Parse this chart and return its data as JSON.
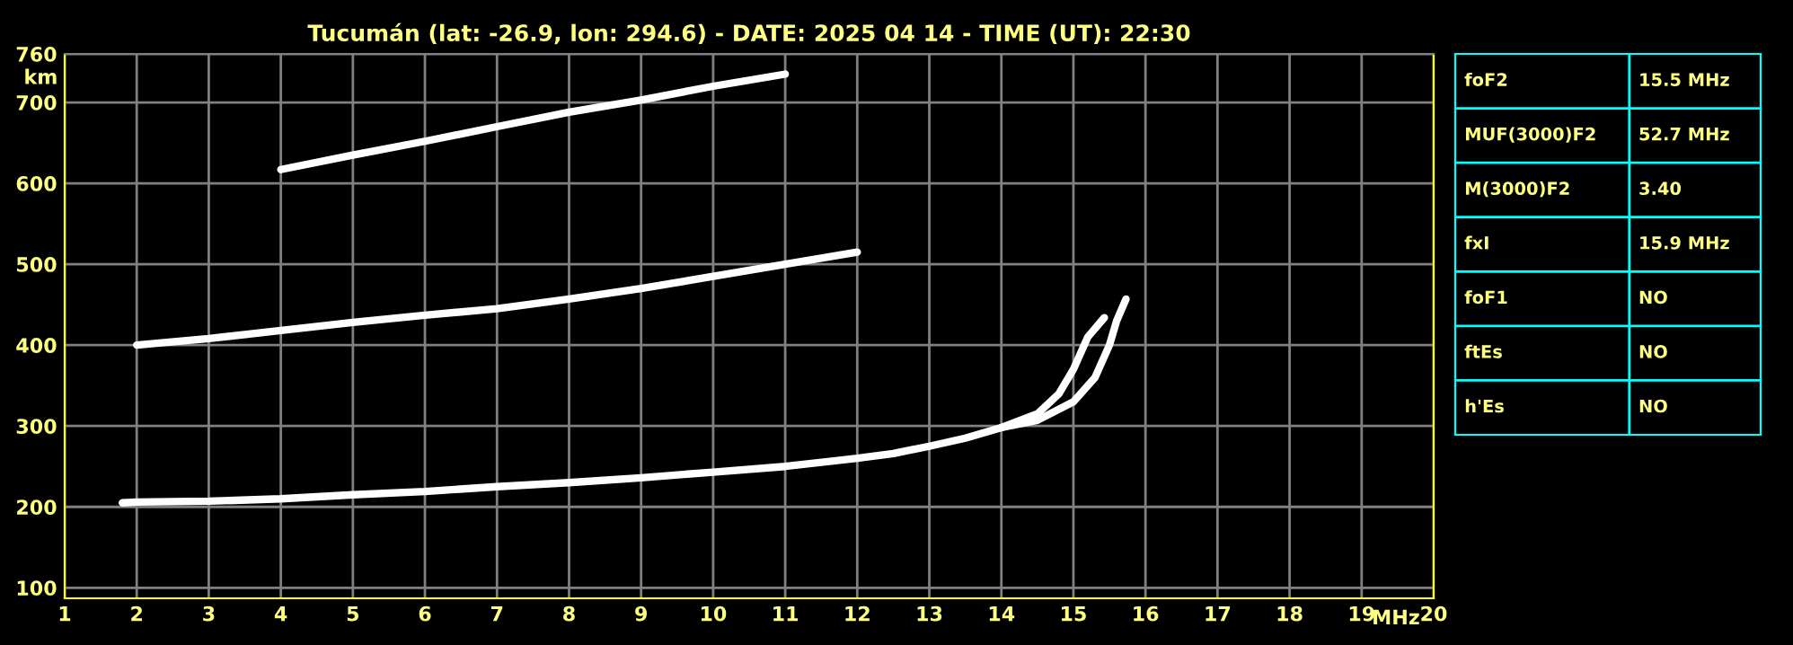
{
  "chart_data": [
    {
      "type": "line",
      "title": "Tucumán (lat: -26.9, lon: 294.6) - DATE: 2025 04 14 - TIME (UT): 22:30",
      "xlabel": "MHz",
      "ylabel": "km",
      "xlim": [
        1,
        20
      ],
      "ylim": [
        87,
        760
      ],
      "xticks": [
        1,
        2,
        3,
        4,
        5,
        6,
        7,
        8,
        9,
        10,
        11,
        12,
        13,
        14,
        15,
        16,
        17,
        18,
        19,
        20
      ],
      "yticks": [
        100,
        200,
        300,
        400,
        500,
        600,
        700,
        760
      ],
      "grid": true,
      "marker": "none",
      "line_style": "solid",
      "series": [
        {
          "color": "#ffffff",
          "x": [
            1.8,
            2,
            3,
            4,
            5,
            6,
            7,
            8,
            9,
            10,
            11,
            12,
            12.5,
            13,
            13.5,
            14,
            14.5,
            14.8,
            15.0,
            15.2,
            15.43
          ],
          "values": [
            205,
            206,
            207,
            210,
            215,
            219,
            225,
            230,
            236,
            243,
            250,
            260,
            266,
            275,
            285,
            298,
            315,
            340,
            370,
            410,
            434
          ]
        },
        {
          "color": "#ffffff",
          "x": [
            14,
            14.5,
            15,
            15.3,
            15.5,
            15.6,
            15.73
          ],
          "values": [
            298,
            307,
            330,
            360,
            400,
            430,
            457
          ]
        },
        {
          "color": "#ffffff",
          "x": [
            2,
            3,
            4,
            5,
            6,
            7,
            8,
            9,
            10,
            11,
            12
          ],
          "values": [
            400,
            408,
            418,
            428,
            437,
            445,
            457,
            470,
            485,
            500,
            515
          ]
        },
        {
          "color": "#ffffff",
          "x": [
            4,
            5,
            6,
            7,
            8,
            9,
            10,
            11
          ],
          "values": [
            617,
            635,
            652,
            670,
            688,
            703,
            720,
            735
          ]
        }
      ]
    },
    {
      "type": "other",
      "categories": [
        "foF2",
        "MUF(3000)F2",
        "M(3000)F2",
        "fxI",
        "foF1",
        "ftEs",
        "h'Es"
      ],
      "annotations": [
        "15.5 MHz",
        "52.7 MHz",
        "3.40",
        "15.9 MHz",
        "NO",
        "NO",
        "NO"
      ]
    }
  ]
}
